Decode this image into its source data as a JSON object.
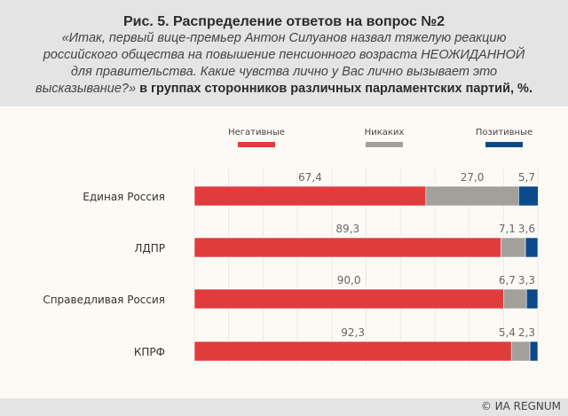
{
  "header": {
    "title": "Рис. 5. Распределение ответов на вопрос №2",
    "question": "«Итак, первый вице-премьер Антон Силуанов назвал тяжелую реакцию российского общества на повышение пенсионного возраста НЕОЖИДАННОЙ для правительства. Какие чувства лично у Вас лично вызывает это высказывание?»",
    "suffix": " в группах сторонников различных парламентских партий, %."
  },
  "footer": {
    "credit": "© ИА REGNUM"
  },
  "chart_data": {
    "type": "bar",
    "stacked": true,
    "orientation": "horizontal",
    "categories": [
      "Единая Россия",
      "ЛДПР",
      "Справедливая Россия",
      "КПРФ"
    ],
    "series": [
      {
        "name": "Негативные",
        "color": "#e03c3c",
        "values": [
          67.4,
          89.3,
          90.0,
          92.3
        ],
        "labels": [
          "67,4",
          "89,3",
          "90,0",
          "92,3"
        ]
      },
      {
        "name": "Никаких",
        "color": "#a39f9a",
        "values": [
          27.0,
          7.1,
          6.7,
          5.4
        ],
        "labels": [
          "27,0",
          "7,1",
          "6,7",
          "5,4"
        ]
      },
      {
        "name": "Позитивные",
        "color": "#0c4a8c",
        "values": [
          5.7,
          3.6,
          3.3,
          2.3
        ],
        "labels": [
          "5,7",
          "3,6",
          "3,3",
          "2,3"
        ]
      }
    ],
    "xlim": [
      0,
      100
    ],
    "grid": true,
    "legend": "top"
  }
}
